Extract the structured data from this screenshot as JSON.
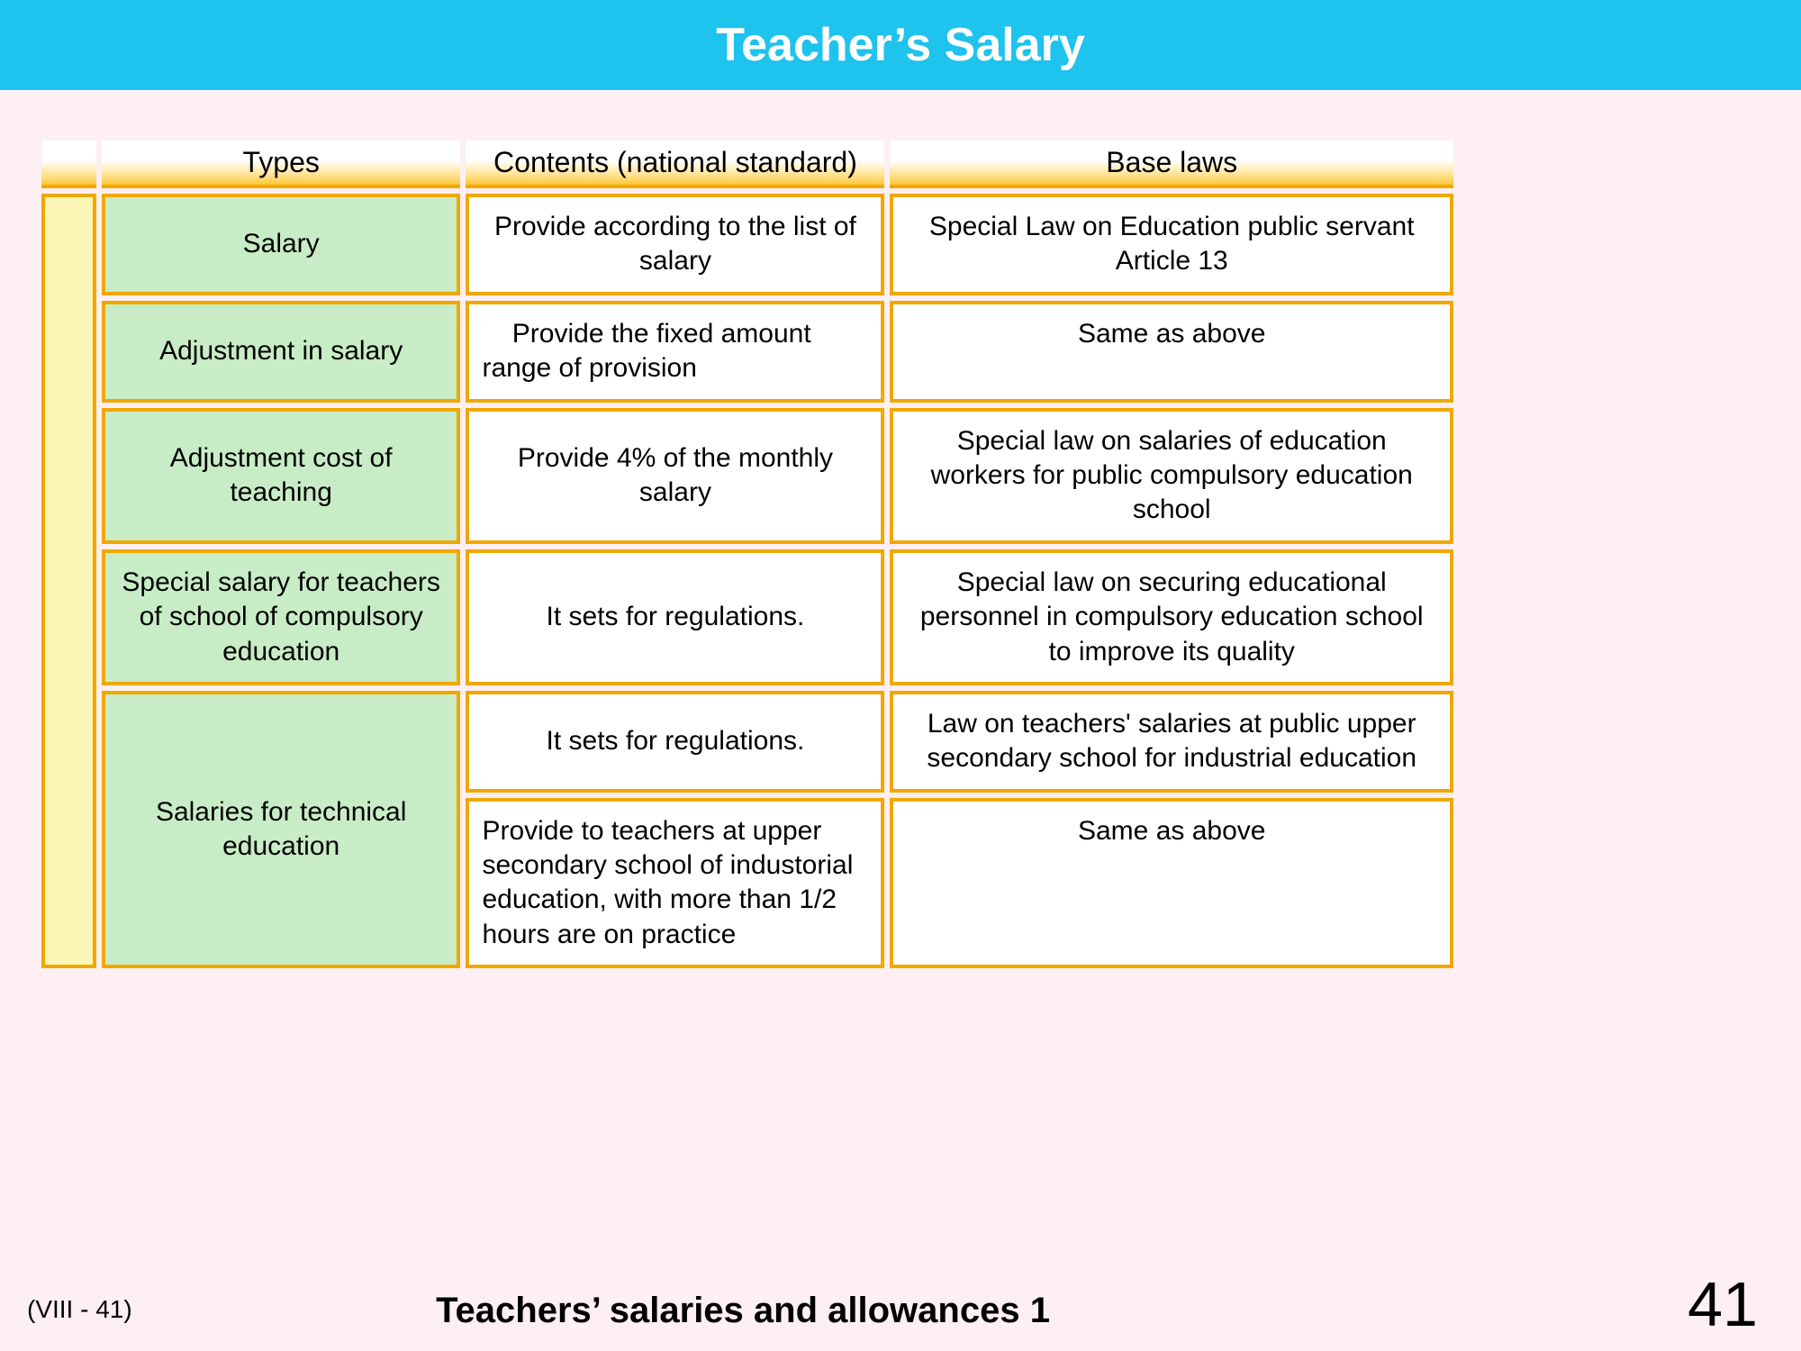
{
  "header": {
    "title": "Teacher’s Salary"
  },
  "table": {
    "columns": {
      "types": "Types",
      "contents": "Contents (national standard)",
      "laws": "Base laws"
    },
    "rows": [
      {
        "type": "Salary",
        "content": "Provide according to the list of salary",
        "law": "Special Law on Education public servant Article 13"
      },
      {
        "type": "Adjustment in salary",
        "content": "Provide the fixed amount range of provision",
        "law": "Same as above"
      },
      {
        "type": "Adjustment cost of teaching",
        "content": "Provide 4% of the monthly salary",
        "law": "Special law on salaries of education workers for public compulsory education school"
      },
      {
        "type": "Special salary for teachers of school of compulsory education",
        "content": "It sets for regulations.",
        "law": "Special law on securing educational personnel in compulsory education school to improve its quality"
      },
      {
        "type": "Salaries for technical education",
        "content": "It sets for regulations.",
        "law": "Law on teachers' salaries at public upper secondary school for industrial education"
      },
      {
        "content": "Provide to teachers at upper secondary school of industorial education, with more than 1/2 hours are on practice",
        "law": "Same as above"
      }
    ]
  },
  "footer": {
    "left": "(VIII - 41)",
    "center": "Teachers’ salaries and allowances 1",
    "page": "41"
  }
}
